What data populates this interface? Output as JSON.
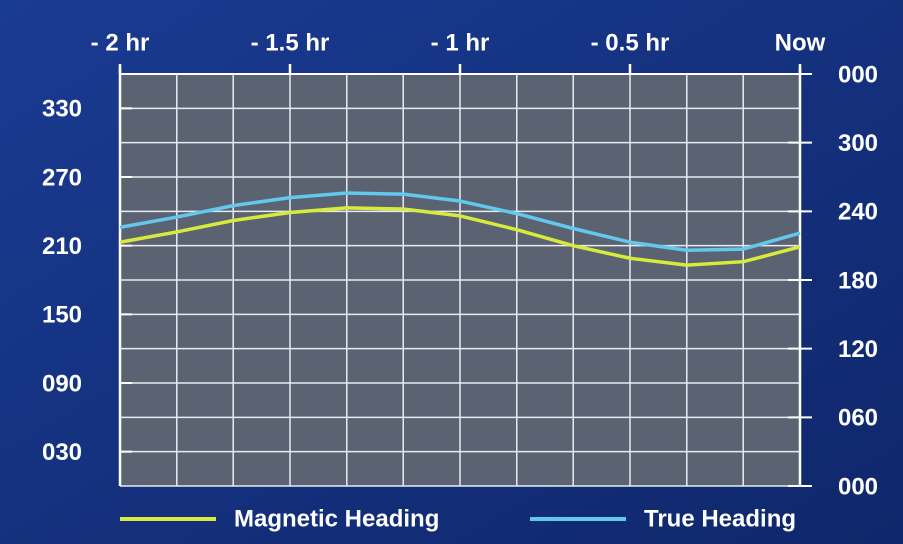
{
  "chart_data": {
    "type": "line",
    "x": [
      -2,
      -1.833,
      -1.667,
      -1.5,
      -1.333,
      -1.167,
      -1,
      -0.833,
      -0.667,
      -0.5,
      -0.333,
      -0.167,
      0
    ],
    "series": [
      {
        "name": "Magnetic Heading",
        "color": "#d8ea3c",
        "values": [
          213,
          222,
          232,
          239,
          243,
          242,
          236,
          224,
          210,
          199,
          193,
          196,
          209
        ]
      },
      {
        "name": "True Heading",
        "color": "#62c8ec",
        "values": [
          226,
          235,
          245,
          252,
          256,
          255,
          249,
          238,
          225,
          213,
          206,
          207,
          221
        ]
      }
    ],
    "xlim": [
      -2,
      0
    ],
    "xticks": [
      {
        "value": -2,
        "label": "- 2 hr"
      },
      {
        "value": -1.5,
        "label": "- 1.5 hr"
      },
      {
        "value": -1,
        "label": "- 1 hr"
      },
      {
        "value": -0.5,
        "label": "- 0.5 hr"
      },
      {
        "value": 0,
        "label": "Now"
      }
    ],
    "ylim": [
      0,
      360
    ],
    "yticks": [
      {
        "value": 30,
        "label": "030"
      },
      {
        "value": 90,
        "label": "090"
      },
      150,
      210,
      270,
      330
    ],
    "y2lim": [
      0,
      360
    ],
    "y2ticks": [
      {
        "value": 0,
        "label": "000"
      },
      {
        "value": 60,
        "label": "060"
      },
      120,
      180,
      240,
      300,
      {
        "value": 360,
        "label": "000"
      }
    ],
    "grid": true,
    "legend": "bottom"
  }
}
